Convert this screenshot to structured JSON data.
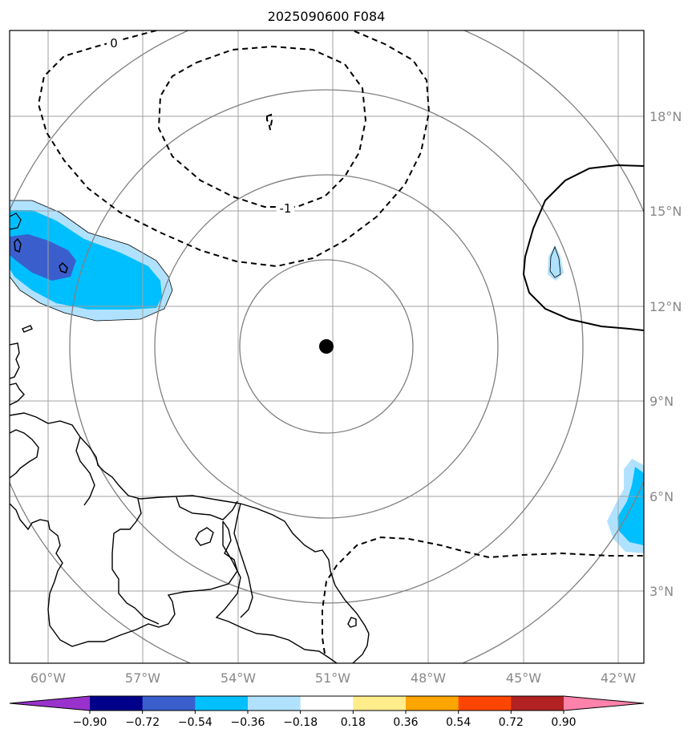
{
  "title": "2025090600 F084",
  "longitude_labels": [
    "60°W",
    "57°W",
    "54°W",
    "51°W",
    "48°W",
    "45°W",
    "42°W"
  ],
  "latitude_labels": [
    "18°N",
    "15°N",
    "12°N",
    "9°N",
    "6°N",
    "3°N"
  ],
  "contour_labels": [
    "0",
    "-1"
  ],
  "colorbar": {
    "tick_labels": [
      "−0.90",
      "−0.72",
      "−0.54",
      "−0.36",
      "−0.18",
      "0.18",
      "0.36",
      "0.54",
      "0.72",
      "0.90"
    ],
    "colors": [
      "#9932cc",
      "#00008b",
      "#3a5fcd",
      "#00bfff",
      "#b0e2ff",
      "#ffffff",
      "#ffec8b",
      "#ffa500",
      "#ff4500",
      "#b22222",
      "#ff82ab"
    ]
  },
  "colors": {
    "grid": "#a0a0a0",
    "range_ring": "#808080",
    "coastline": "#000000",
    "center_marker": "#000000"
  }
}
